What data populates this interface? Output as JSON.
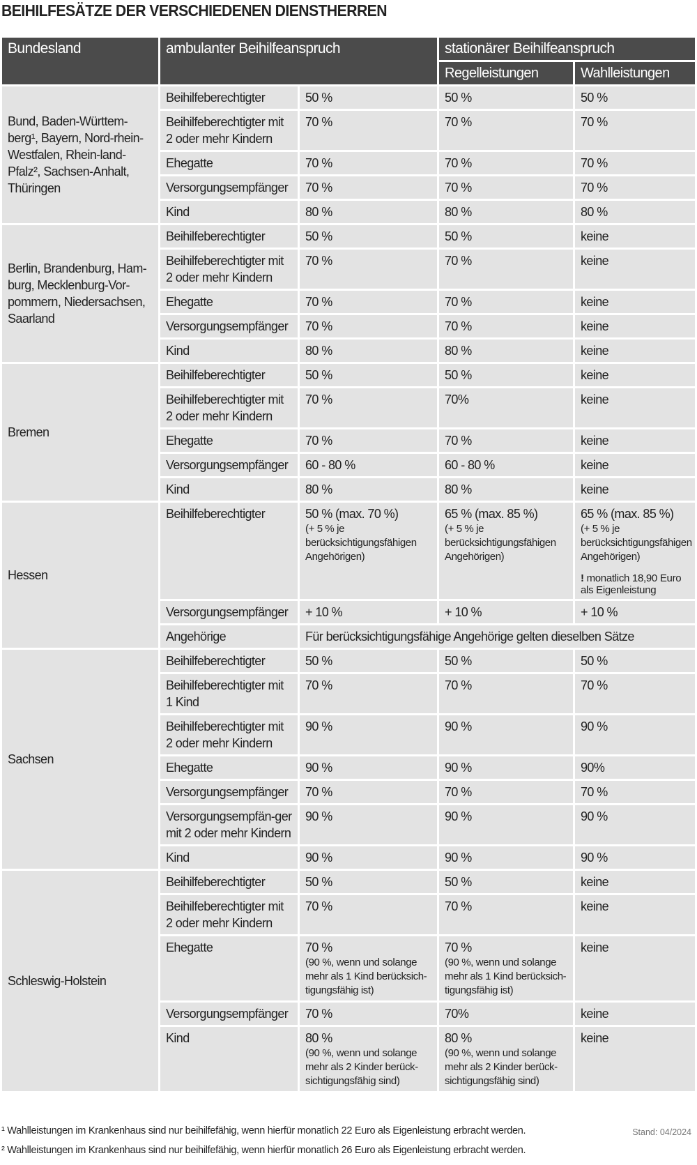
{
  "title": "BEIHILFESÄTZE DER VERSCHIEDENEN DIENSTHERREN",
  "header": {
    "bundesland": "Bundesland",
    "ambulant": "ambulanter Beihilfeanspruch",
    "stationaer": "stationärer Beihilfeanspruch",
    "regel": "Regelleistungen",
    "wahl": "Wahlleistungen"
  },
  "colors": {
    "header_bg": "#4b4b4b",
    "cell_bg": "#e3e3e3"
  },
  "groups": [
    {
      "state": "Bund, Baden-Württem-berg¹, Bayern, Nord-rhein-Westfalen, Rhein-land-Pfalz², Sachsen-Anhalt, Thüringen",
      "rows": [
        {
          "label": "Beihilfeberechtigter",
          "amb": "50 %",
          "reg": "50 %",
          "wahl": "50 %"
        },
        {
          "label": "Beihilfeberechtigter mit 2 oder mehr Kindern",
          "amb": "70 %",
          "reg": "70 %",
          "wahl": "70 %"
        },
        {
          "label": "Ehegatte",
          "amb": "70 %",
          "reg": "70 %",
          "wahl": "70 %"
        },
        {
          "label": "Versorgungsempfänger",
          "amb": "70 %",
          "reg": "70 %",
          "wahl": "70 %"
        },
        {
          "label": "Kind",
          "amb": "80 %",
          "reg": "80 %",
          "wahl": "80 %"
        }
      ]
    },
    {
      "state": "Berlin, Brandenburg, Ham-burg, Mecklenburg-Vor-pommern, Niedersachsen, Saarland",
      "rows": [
        {
          "label": "Beihilfeberechtigter",
          "amb": "50 %",
          "reg": "50 %",
          "wahl": "keine"
        },
        {
          "label": "Beihilfeberechtigter mit 2 oder mehr Kindern",
          "amb": "70 %",
          "reg": "70 %",
          "wahl": "keine"
        },
        {
          "label": "Ehegatte",
          "amb": "70 %",
          "reg": "70 %",
          "wahl": "keine"
        },
        {
          "label": "Versorgungsempfänger",
          "amb": "70 %",
          "reg": "70 %",
          "wahl": "keine"
        },
        {
          "label": "Kind",
          "amb": "80 %",
          "reg": "80 %",
          "wahl": "keine"
        }
      ]
    },
    {
      "state": "Bremen",
      "rows": [
        {
          "label": "Beihilfeberechtigter",
          "amb": "50 %",
          "reg": "50 %",
          "wahl": "keine"
        },
        {
          "label": "Beihilfeberechtigter mit 2 oder mehr Kindern",
          "amb": "70 %",
          "reg": "70%",
          "wahl": "keine"
        },
        {
          "label": "Ehegatte",
          "amb": "70 %",
          "reg": "70 %",
          "wahl": "keine"
        },
        {
          "label": "Versorgungsempfänger",
          "amb": "60 - 80 %",
          "reg": "60 - 80 %",
          "wahl": "keine"
        },
        {
          "label": "Kind",
          "amb": "80 %",
          "reg": "80 %",
          "wahl": "keine"
        }
      ]
    },
    {
      "state": "Hessen",
      "rows": [
        {
          "label": "Beihilfeberechtigter",
          "amb": "50 % (max. 70 %)",
          "amb_note": "(+ 5 % je berücksichtigungsfähigen Angehörigen)",
          "reg": "65 % (max. 85 %)",
          "reg_note": "(+ 5 % je berücksichtigungsfähigen Angehörigen)",
          "wahl": "65 % (max. 85 %)",
          "wahl_note": "(+ 5 % je berücksichtigungsfähigen Angehörigen)",
          "wahl_warn_mark": "!",
          "wahl_warn": " monatlich 18,90 Euro als Eigenleistung"
        },
        {
          "label": "Versorgungsempfänger",
          "amb": "+ 10 %",
          "reg": "+ 10 %",
          "wahl": "+ 10 %"
        },
        {
          "label": "Angehörige",
          "span": "Für berücksichtigungsfähige Angehörige gelten dieselben Sätze"
        }
      ]
    },
    {
      "state": "Sachsen",
      "rows": [
        {
          "label": "Beihilfeberechtigter",
          "amb": "50 %",
          "reg": "50 %",
          "wahl": "50 %"
        },
        {
          "label": "Beihilfeberechtigter mit 1 Kind",
          "amb": "70 %",
          "reg": "70 %",
          "wahl": "70 %"
        },
        {
          "label": "Beihilfeberechtigter mit 2 oder mehr Kindern",
          "amb": "90 %",
          "reg": "90 %",
          "wahl": "90 %"
        },
        {
          "label": "Ehegatte",
          "amb": "90 %",
          "reg": "90 %",
          "wahl": "90%"
        },
        {
          "label": "Versorgungsempfänger",
          "amb": "70 %",
          "reg": "70 %",
          "wahl": "70 %"
        },
        {
          "label": "Versorgungsempfän-ger mit 2 oder mehr Kindern",
          "amb": "90 %",
          "reg": "90 %",
          "wahl": "90 %"
        },
        {
          "label": "Kind",
          "amb": "90 %",
          "reg": "90 %",
          "wahl": "90 %"
        }
      ]
    },
    {
      "state": "Schleswig-Holstein",
      "rows": [
        {
          "label": "Beihilfeberechtigter",
          "amb": "50 %",
          "reg": "50 %",
          "wahl": "keine"
        },
        {
          "label": "Beihilfeberechtigter mit 2 oder mehr Kindern",
          "amb": "70 %",
          "reg": "70 %",
          "wahl": "keine"
        },
        {
          "label": "Ehegatte",
          "amb": "70 %",
          "amb_note": "(90 %, wenn und solange mehr als 1 Kind berücksich-tigungsfähig ist)",
          "reg": "70 %",
          "reg_note": "(90 %, wenn und solange mehr als 1 Kind berücksich-tigungsfähig ist)",
          "wahl": "keine"
        },
        {
          "label": "Versorgungsempfänger",
          "amb": "70 %",
          "reg": "70%",
          "wahl": "keine"
        },
        {
          "label": "Kind",
          "amb": "80 %",
          "amb_note": "(90 %, wenn und solange mehr als 2 Kinder berück-sichtigungsfähig sind)",
          "reg": "80 %",
          "reg_note": "(90 %, wenn und solange mehr als 2 Kinder berück-sichtigungsfähig sind)",
          "wahl": "keine"
        }
      ]
    }
  ],
  "footnotes": [
    "¹ Wahlleistungen im Krankenhaus sind nur beihilfefähig, wenn hierfür monatlich 22 Euro als Eigenleistung erbracht werden.",
    "² Wahlleistungen im Krankenhaus sind nur beihilfefähig, wenn hierfür monatlich 26 Euro als Eigenleistung erbracht werden."
  ],
  "stand": "Stand: 04/2024"
}
